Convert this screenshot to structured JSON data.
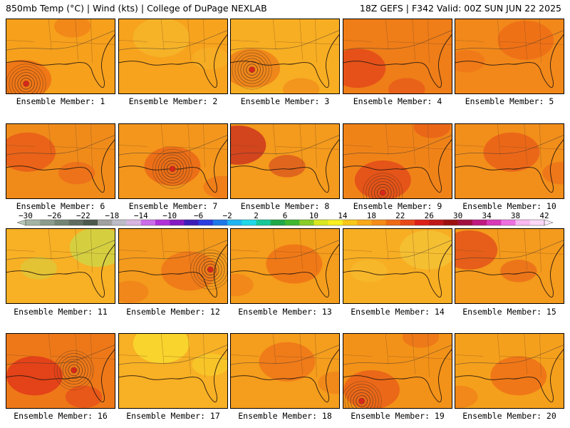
{
  "header": {
    "left": "850mb Temp (°C) | Wind (kts) | College of DuPage NEXLAB",
    "right": "18Z GEFS | F342 Valid: 00Z SUN JUN 22 2025"
  },
  "members": [
    {
      "label": "Ensemble Member: 1",
      "base": "#f6a01c",
      "blob": "#ee6a14",
      "low": true
    },
    {
      "label": "Ensemble Member: 2",
      "base": "#f7a31d",
      "blob": "#f5b82c",
      "low": false
    },
    {
      "label": "Ensemble Member: 3",
      "base": "#f8ae22",
      "blob": "#ee7a18",
      "low": true
    },
    {
      "label": "Ensemble Member: 4",
      "base": "#ef7d18",
      "blob": "#e2431a",
      "low": false
    },
    {
      "label": "Ensemble Member: 5",
      "base": "#f2881a",
      "blob": "#ee6a16",
      "low": false
    },
    {
      "label": "Ensemble Member: 6",
      "base": "#f08b1a",
      "blob": "#e85518",
      "low": false
    },
    {
      "label": "Ensemble Member: 7",
      "base": "#f4961c",
      "blob": "#ea6216",
      "low": true
    },
    {
      "label": "Ensemble Member: 8",
      "base": "#f49a1c",
      "blob": "#c8281e",
      "low": false
    },
    {
      "label": "Ensemble Member: 9",
      "base": "#f08318",
      "blob": "#e24418",
      "low": true
    },
    {
      "label": "Ensemble Member: 10",
      "base": "#f28e1a",
      "blob": "#e85a18",
      "low": false
    },
    {
      "label": "Ensemble Member: 11",
      "base": "#f8b024",
      "blob": "#c9d94a",
      "low": false
    },
    {
      "label": "Ensemble Member: 12",
      "base": "#f49a1c",
      "blob": "#ee7018",
      "low": true
    },
    {
      "label": "Ensemble Member: 13",
      "base": "#f59d1c",
      "blob": "#ee6e16",
      "low": false
    },
    {
      "label": "Ensemble Member: 14",
      "base": "#f8ae22",
      "blob": "#f4c438",
      "low": false
    },
    {
      "label": "Ensemble Member: 15",
      "base": "#f49a1c",
      "blob": "#e24a18",
      "low": false
    },
    {
      "label": "Ensemble Member: 16",
      "base": "#ee7818",
      "blob": "#e03018",
      "low": true
    },
    {
      "label": "Ensemble Member: 17",
      "base": "#f8b024",
      "blob": "#f8e030",
      "low": false
    },
    {
      "label": "Ensemble Member: 18",
      "base": "#f59d1c",
      "blob": "#ee7018",
      "low": false
    },
    {
      "label": "Ensemble Member: 19",
      "base": "#f39218",
      "blob": "#e85a18",
      "low": true
    },
    {
      "label": "Ensemble Member: 20",
      "base": "#f5a01c",
      "blob": "#ee6a16",
      "low": false
    }
  ],
  "colorbar": {
    "labels": [
      "−30",
      "−26",
      "−22",
      "−18",
      "−14",
      "−10",
      "−6",
      "−2",
      "2",
      "6",
      "10",
      "14",
      "18",
      "22",
      "26",
      "30",
      "34",
      "38",
      "42"
    ],
    "colors": [
      "#a3b3a3",
      "#8c9c8c",
      "#748474",
      "#606c60",
      "#4c584c",
      "#a0a0a0",
      "#bcbcc8",
      "#d8b4e0",
      "#cc6ce8",
      "#b030d8",
      "#8418c0",
      "#3c1cb8",
      "#2a3ce0",
      "#1e78e8",
      "#20b4f0",
      "#20d8e8",
      "#18c898",
      "#20a848",
      "#40b830",
      "#88cc28",
      "#d8e820",
      "#f8f020",
      "#f8c818",
      "#f8a818",
      "#f48c18",
      "#ee6a14",
      "#e84818",
      "#dc2018",
      "#c01818",
      "#9c1010",
      "#a01040",
      "#c01880",
      "#d838b8",
      "#ee70e0",
      "#f8b8f0",
      "#fcd8f8"
    ]
  }
}
